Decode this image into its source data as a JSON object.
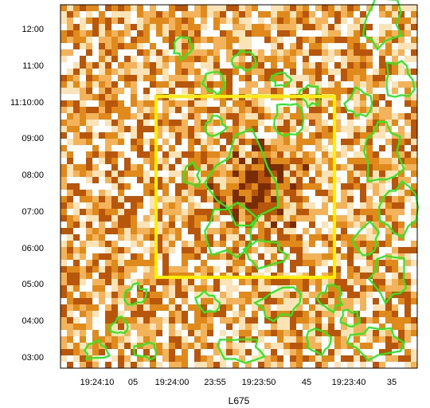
{
  "figure": {
    "caption": "L675",
    "background_colors": [
      "#ffffff",
      "#fbe3b8",
      "#f2b35a",
      "#e08a1c",
      "#b8560c",
      "#7a2c04"
    ],
    "contour_color": "#22ee22",
    "box_color": "#ffee00",
    "y_ticks": [
      "12:00",
      "11:00",
      "11:10:00",
      "09:00",
      "08:00",
      "07:00",
      "06:00",
      "05:00",
      "04:00",
      "03:00"
    ],
    "x_ticks": [
      "19:24:10",
      "05",
      "19:24:00",
      "23:55",
      "19:23:50",
      "45",
      "19:23:40",
      "35"
    ]
  }
}
